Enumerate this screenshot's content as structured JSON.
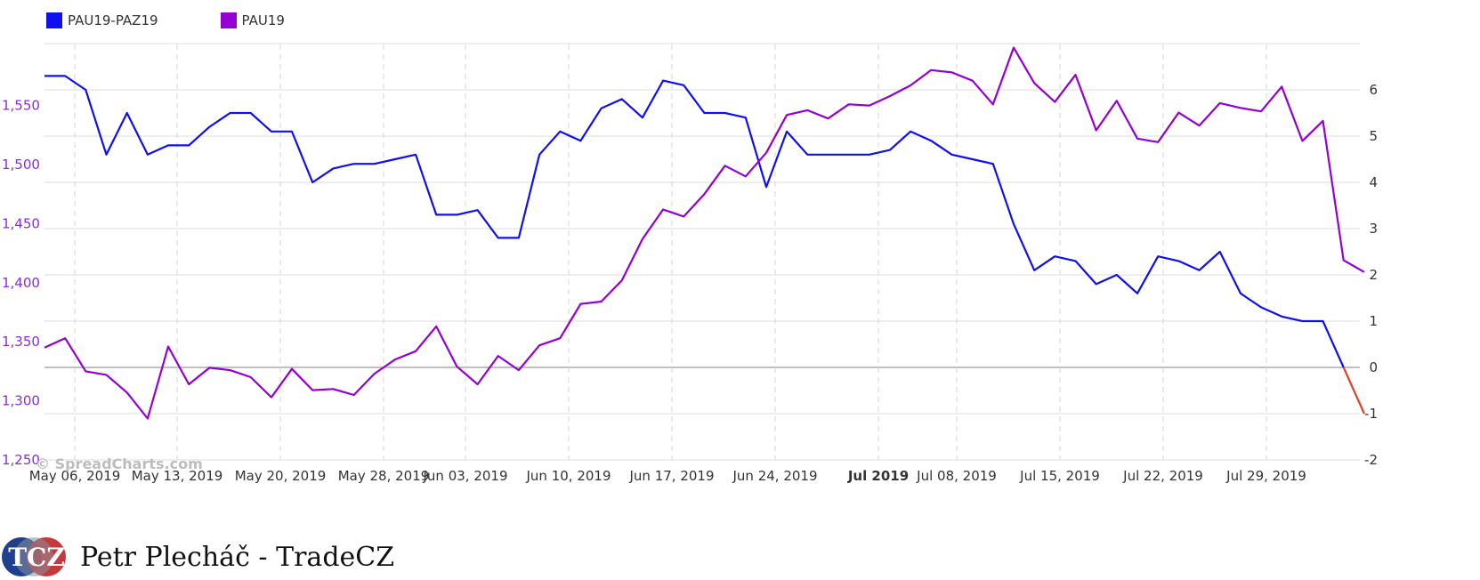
{
  "legend": {
    "spread_label": "PAU19-PAZ19",
    "outright_label": "PAU19"
  },
  "watermark": "© SpreadCharts.com",
  "footer": {
    "logo_text": "TCZ",
    "author": "Petr Plecháč - TradeCZ"
  },
  "colors": {
    "spread": "#1010ee",
    "outright": "#9400d3",
    "negative_segment": "#e0402a",
    "left_axis_text": "#8a2be2"
  },
  "chart_data": {
    "type": "line",
    "x_ticks": [
      "May 06, 2019",
      "May 13, 2019",
      "May 20, 2019",
      "May 28, 2019",
      "Jun 03, 2019",
      "Jun 10, 2019",
      "Jun 17, 2019",
      "Jun 24, 2019",
      "Jul 2019",
      "Jul 08, 2019",
      "Jul 15, 2019",
      "Jul 22, 2019",
      "Jul 29, 2019"
    ],
    "x_tick_bold": "Jul 2019",
    "left_axis": {
      "ticks": [
        "1,250",
        "1,300",
        "1,350",
        "1,400",
        "1,450",
        "1,500",
        "1,550"
      ],
      "range": [
        1250,
        1600
      ]
    },
    "right_axis": {
      "ticks": [
        "-2",
        "-1",
        "0",
        "1",
        "2",
        "3",
        "4",
        "5",
        "6"
      ],
      "range": [
        -2,
        7
      ]
    },
    "series": [
      {
        "name": "PAU19-PAZ19",
        "axis": "right",
        "values": [
          6.3,
          6.3,
          6.0,
          4.6,
          5.5,
          4.6,
          4.8,
          4.8,
          5.2,
          5.5,
          5.5,
          5.1,
          5.1,
          4.0,
          4.3,
          4.4,
          4.4,
          4.5,
          4.6,
          3.3,
          3.3,
          3.4,
          2.8,
          2.8,
          4.6,
          5.1,
          4.9,
          5.6,
          5.8,
          5.4,
          6.2,
          6.1,
          5.5,
          5.5,
          5.4,
          3.9,
          5.1,
          4.6,
          4.6,
          4.6,
          4.6,
          4.7,
          5.1,
          4.9,
          4.6,
          4.5,
          4.4,
          3.1,
          2.1,
          2.4,
          2.3,
          1.8,
          2.0,
          1.6,
          2.4,
          2.3,
          2.1,
          2.5,
          1.6,
          1.3,
          1.1,
          1.0,
          1.0,
          0.0
        ]
      },
      {
        "name": "PAU19",
        "axis": "left",
        "values": [
          1345,
          1353,
          1325,
          1322,
          1307,
          1285,
          1346,
          1314,
          1328,
          1326,
          1320,
          1303,
          1327,
          1309,
          1310,
          1305,
          1323,
          1335,
          1342,
          1363,
          1329,
          1314,
          1338,
          1326,
          1347,
          1353,
          1382,
          1384,
          1402,
          1437,
          1462,
          1456,
          1475,
          1499,
          1490,
          1510,
          1542,
          1546,
          1539,
          1551,
          1550,
          1558,
          1567,
          1580,
          1578,
          1571,
          1551,
          1599,
          1569,
          1553,
          1576,
          1529,
          1554,
          1522,
          1519,
          1544,
          1533,
          1552,
          1548,
          1545,
          1566,
          1520,
          1537,
          1419,
          1409
        ]
      },
      {
        "name": "",
        "axis": "right",
        "values": [
          0.0,
          -1.0
        ],
        "start_index": 63
      }
    ]
  }
}
